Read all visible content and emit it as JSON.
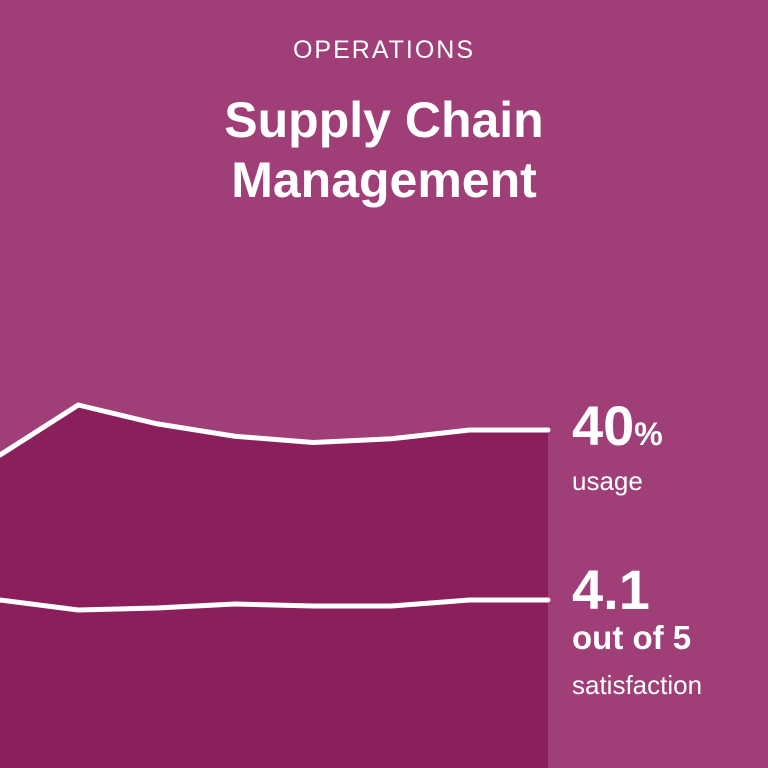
{
  "header": {
    "eyebrow": "OPERATIONS",
    "title_line1": "Supply Chain",
    "title_line2": "Management"
  },
  "colors": {
    "background": "#A03E78",
    "area_fill": "#8B1F5C",
    "line": "#ffffff",
    "text": "#ffffff"
  },
  "chart_data": {
    "type": "line",
    "x": [
      0,
      1,
      2,
      3,
      4,
      5,
      6,
      7
    ],
    "series": [
      {
        "values": [
          38,
          42,
          40.5,
          39.5,
          39,
          39.3,
          40,
          40
        ]
      },
      {
        "values": [
          4.1,
          4.05,
          4.06,
          4.08,
          4.07,
          4.07,
          4.1,
          4.1
        ]
      }
    ],
    "annotations": [
      {
        "value": "40",
        "unit": "%",
        "label": "usage"
      },
      {
        "value": "4.1",
        "unit_line": "out of 5",
        "label": "satisfaction"
      }
    ]
  }
}
